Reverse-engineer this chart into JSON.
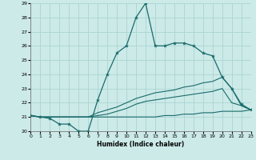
{
  "xlabel": "Humidex (Indice chaleur)",
  "bg_color": "#cceae8",
  "grid_color": "#aad4d2",
  "line_color": "#1a6b6b",
  "xlim": [
    0,
    23
  ],
  "ylim": [
    20,
    29
  ],
  "xtick_labels": [
    "0",
    "1",
    "2",
    "3",
    "4",
    "5",
    "6",
    "7",
    "8",
    "9",
    "10",
    "11",
    "12",
    "13",
    "14",
    "15",
    "16",
    "17",
    "18",
    "19",
    "20",
    "21",
    "22",
    "23"
  ],
  "ytick_labels": [
    "20",
    "21",
    "22",
    "23",
    "24",
    "25",
    "26",
    "27",
    "28",
    "29"
  ],
  "line1_x": [
    0,
    1,
    2,
    3,
    4,
    5,
    6,
    7,
    8,
    9,
    10,
    11,
    12,
    13,
    14,
    15,
    16,
    17,
    18,
    19,
    20,
    21,
    22,
    23
  ],
  "line1_y": [
    21.1,
    21.0,
    20.9,
    20.5,
    20.5,
    20.0,
    20.0,
    22.2,
    24.0,
    25.5,
    26.0,
    28.0,
    29.0,
    26.0,
    26.0,
    26.2,
    26.2,
    26.0,
    25.5,
    25.3,
    23.8,
    23.0,
    21.9,
    21.5
  ],
  "line2_x": [
    0,
    1,
    2,
    3,
    4,
    5,
    6,
    7,
    8,
    9,
    10,
    11,
    12,
    13,
    14,
    15,
    16,
    17,
    18,
    19,
    20,
    21,
    22,
    23
  ],
  "line2_y": [
    21.1,
    21.0,
    21.0,
    21.0,
    21.0,
    21.0,
    21.0,
    21.3,
    21.5,
    21.7,
    22.0,
    22.3,
    22.5,
    22.7,
    22.8,
    22.9,
    23.1,
    23.2,
    23.4,
    23.5,
    23.8,
    23.0,
    21.8,
    21.5
  ],
  "line3_x": [
    0,
    1,
    2,
    3,
    4,
    5,
    6,
    7,
    8,
    9,
    10,
    11,
    12,
    13,
    14,
    15,
    16,
    17,
    18,
    19,
    20,
    21,
    22,
    23
  ],
  "line3_y": [
    21.1,
    21.0,
    21.0,
    21.0,
    21.0,
    21.0,
    21.0,
    21.1,
    21.2,
    21.4,
    21.6,
    21.9,
    22.1,
    22.2,
    22.3,
    22.4,
    22.5,
    22.6,
    22.7,
    22.8,
    23.0,
    22.0,
    21.8,
    21.5
  ],
  "line4_x": [
    0,
    1,
    2,
    3,
    4,
    5,
    6,
    7,
    8,
    9,
    10,
    11,
    12,
    13,
    14,
    15,
    16,
    17,
    18,
    19,
    20,
    21,
    22,
    23
  ],
  "line4_y": [
    21.1,
    21.0,
    21.0,
    21.0,
    21.0,
    21.0,
    21.0,
    21.0,
    21.0,
    21.0,
    21.0,
    21.0,
    21.0,
    21.0,
    21.1,
    21.1,
    21.2,
    21.2,
    21.3,
    21.3,
    21.4,
    21.4,
    21.4,
    21.5
  ]
}
